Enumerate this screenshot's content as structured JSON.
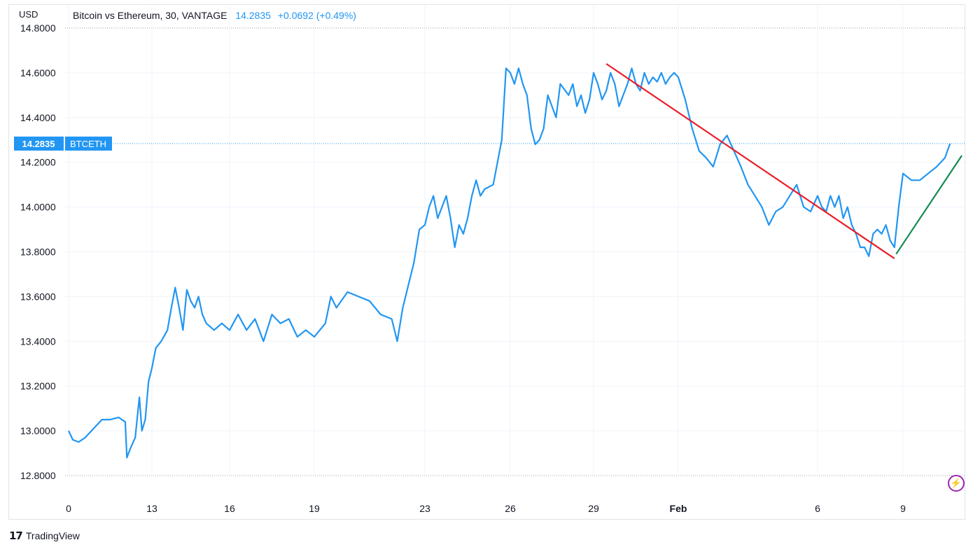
{
  "header": {
    "symbol_title": "Bitcoin vs Ethereum, 30, VANTAGE",
    "last_value": "14.2835",
    "change": "+0.0692 (+0.49%)"
  },
  "currency_label": "USD",
  "price_tag": {
    "value": "14.2835",
    "symbol": "BTCETH"
  },
  "branding": {
    "logo": "17",
    "name": "TradingView"
  },
  "icons": {
    "bolt": "lightning-icon"
  },
  "colors": {
    "series": "#2196f3",
    "downtrend": "#e91e2a",
    "uptrend": "#138a4e",
    "grid": "#f0f3fa"
  },
  "chart_data": {
    "type": "line",
    "title": "Bitcoin vs Ethereum, 30, VANTAGE",
    "ylabel": "USD",
    "ylim": [
      12.8,
      14.8
    ],
    "yticks": [
      "14.8000",
      "14.6000",
      "14.4000",
      "14.2000",
      "14.0000",
      "13.8000",
      "13.6000",
      "13.4000",
      "13.2000",
      "13.0000",
      "12.8000"
    ],
    "xticks": [
      {
        "label": "0",
        "x": 0
      },
      {
        "label": "13",
        "x": 1
      },
      {
        "label": "16",
        "x": 2
      },
      {
        "label": "19",
        "x": 3
      },
      {
        "label": "23",
        "x": 4
      },
      {
        "label": "26",
        "x": 5
      },
      {
        "label": "29",
        "x": 6
      },
      {
        "label": "Feb",
        "x": 7
      },
      {
        "label": "6",
        "x": 8
      },
      {
        "label": "9",
        "x": 9
      }
    ],
    "grid": true,
    "series": [
      {
        "name": "BTCETH",
        "points": [
          [
            0.0,
            13.0
          ],
          [
            0.05,
            12.96
          ],
          [
            0.12,
            12.95
          ],
          [
            0.2,
            12.97
          ],
          [
            0.3,
            13.01
          ],
          [
            0.4,
            13.05
          ],
          [
            0.5,
            13.05
          ],
          [
            0.6,
            13.06
          ],
          [
            0.68,
            13.04
          ],
          [
            0.7,
            12.88
          ],
          [
            0.74,
            12.92
          ],
          [
            0.8,
            12.97
          ],
          [
            0.85,
            13.15
          ],
          [
            0.88,
            13.0
          ],
          [
            0.92,
            13.05
          ],
          [
            0.96,
            13.22
          ],
          [
            1.0,
            13.28
          ],
          [
            1.05,
            13.37
          ],
          [
            1.12,
            13.4
          ],
          [
            1.2,
            13.45
          ],
          [
            1.25,
            13.55
          ],
          [
            1.3,
            13.64
          ],
          [
            1.35,
            13.55
          ],
          [
            1.4,
            13.45
          ],
          [
            1.45,
            13.63
          ],
          [
            1.5,
            13.58
          ],
          [
            1.55,
            13.55
          ],
          [
            1.6,
            13.6
          ],
          [
            1.65,
            13.52
          ],
          [
            1.7,
            13.48
          ],
          [
            1.8,
            13.45
          ],
          [
            1.9,
            13.48
          ],
          [
            2.0,
            13.45
          ],
          [
            2.1,
            13.52
          ],
          [
            2.2,
            13.45
          ],
          [
            2.3,
            13.5
          ],
          [
            2.4,
            13.4
          ],
          [
            2.5,
            13.52
          ],
          [
            2.6,
            13.48
          ],
          [
            2.7,
            13.5
          ],
          [
            2.8,
            13.42
          ],
          [
            2.9,
            13.45
          ],
          [
            3.0,
            13.42
          ],
          [
            3.1,
            13.48
          ],
          [
            3.15,
            13.6
          ],
          [
            3.2,
            13.55
          ],
          [
            3.3,
            13.62
          ],
          [
            3.4,
            13.6
          ],
          [
            3.5,
            13.58
          ],
          [
            3.6,
            13.52
          ],
          [
            3.7,
            13.5
          ],
          [
            3.75,
            13.4
          ],
          [
            3.8,
            13.55
          ],
          [
            3.85,
            13.65
          ],
          [
            3.9,
            13.75
          ],
          [
            3.95,
            13.9
          ],
          [
            4.0,
            13.92
          ],
          [
            4.05,
            14.0
          ],
          [
            4.1,
            14.05
          ],
          [
            4.15,
            13.95
          ],
          [
            4.2,
            14.0
          ],
          [
            4.25,
            14.05
          ],
          [
            4.3,
            13.95
          ],
          [
            4.35,
            13.82
          ],
          [
            4.4,
            13.92
          ],
          [
            4.45,
            13.88
          ],
          [
            4.5,
            13.95
          ],
          [
            4.55,
            14.05
          ],
          [
            4.6,
            14.12
          ],
          [
            4.65,
            14.05
          ],
          [
            4.7,
            14.08
          ],
          [
            4.8,
            14.1
          ],
          [
            4.85,
            14.2
          ],
          [
            4.9,
            14.3
          ],
          [
            4.95,
            14.62
          ],
          [
            5.0,
            14.6
          ],
          [
            5.05,
            14.55
          ],
          [
            5.1,
            14.62
          ],
          [
            5.15,
            14.55
          ],
          [
            5.2,
            14.5
          ],
          [
            5.25,
            14.35
          ],
          [
            5.3,
            14.28
          ],
          [
            5.35,
            14.3
          ],
          [
            5.4,
            14.35
          ],
          [
            5.45,
            14.5
          ],
          [
            5.5,
            14.45
          ],
          [
            5.55,
            14.4
          ],
          [
            5.6,
            14.55
          ],
          [
            5.7,
            14.5
          ],
          [
            5.75,
            14.55
          ],
          [
            5.8,
            14.45
          ],
          [
            5.85,
            14.5
          ],
          [
            5.9,
            14.42
          ],
          [
            5.95,
            14.48
          ],
          [
            6.0,
            14.6
          ],
          [
            6.05,
            14.55
          ],
          [
            6.1,
            14.48
          ],
          [
            6.15,
            14.52
          ],
          [
            6.2,
            14.6
          ],
          [
            6.25,
            14.55
          ],
          [
            6.3,
            14.45
          ],
          [
            6.35,
            14.5
          ],
          [
            6.4,
            14.55
          ],
          [
            6.45,
            14.62
          ],
          [
            6.5,
            14.55
          ],
          [
            6.55,
            14.52
          ],
          [
            6.6,
            14.6
          ],
          [
            6.65,
            14.55
          ],
          [
            6.7,
            14.58
          ],
          [
            6.75,
            14.56
          ],
          [
            6.8,
            14.6
          ],
          [
            6.85,
            14.55
          ],
          [
            6.9,
            14.58
          ],
          [
            6.95,
            14.6
          ],
          [
            7.0,
            14.58
          ],
          [
            7.05,
            14.48
          ],
          [
            7.1,
            14.35
          ],
          [
            7.15,
            14.25
          ],
          [
            7.2,
            14.22
          ],
          [
            7.25,
            14.18
          ],
          [
            7.3,
            14.28
          ],
          [
            7.35,
            14.32
          ],
          [
            7.4,
            14.25
          ],
          [
            7.45,
            14.18
          ],
          [
            7.5,
            14.1
          ],
          [
            7.55,
            14.05
          ],
          [
            7.6,
            14.0
          ],
          [
            7.65,
            13.92
          ],
          [
            7.7,
            13.98
          ],
          [
            7.75,
            14.0
          ],
          [
            7.8,
            14.05
          ],
          [
            7.85,
            14.1
          ],
          [
            7.9,
            14.0
          ],
          [
            7.95,
            13.98
          ],
          [
            8.0,
            14.05
          ],
          [
            8.05,
            14.0
          ],
          [
            8.1,
            13.98
          ],
          [
            8.15,
            14.05
          ],
          [
            8.2,
            14.0
          ],
          [
            8.25,
            14.05
          ],
          [
            8.3,
            13.95
          ],
          [
            8.35,
            14.0
          ],
          [
            8.4,
            13.92
          ],
          [
            8.45,
            13.88
          ],
          [
            8.5,
            13.82
          ],
          [
            8.55,
            13.82
          ],
          [
            8.6,
            13.78
          ],
          [
            8.65,
            13.88
          ],
          [
            8.7,
            13.9
          ],
          [
            8.75,
            13.88
          ],
          [
            8.8,
            13.92
          ],
          [
            8.85,
            13.85
          ],
          [
            8.9,
            13.82
          ],
          [
            8.95,
            14.0
          ],
          [
            9.0,
            14.15
          ],
          [
            9.05,
            14.12
          ],
          [
            9.1,
            14.12
          ],
          [
            9.15,
            14.15
          ],
          [
            9.2,
            14.18
          ],
          [
            9.25,
            14.22
          ],
          [
            9.28,
            14.2835
          ]
        ]
      }
    ],
    "trendlines": [
      {
        "name": "downtrend",
        "from": [
          6.15,
          14.64
        ],
        "to": [
          8.9,
          13.77
        ]
      },
      {
        "name": "uptrend",
        "from": [
          8.92,
          13.79
        ],
        "to": [
          9.35,
          14.23
        ]
      }
    ]
  }
}
